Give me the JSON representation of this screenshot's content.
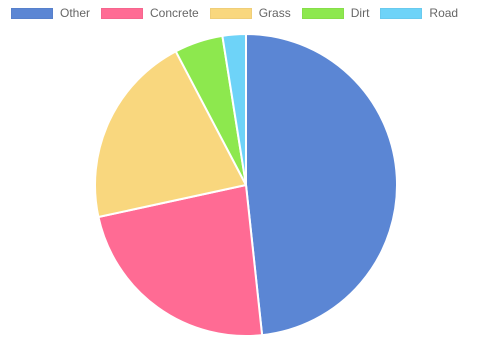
{
  "chart_data": {
    "type": "pie",
    "categories": [
      "Other",
      "Concrete",
      "Grass",
      "Dirt",
      "Road"
    ],
    "values": [
      48.3,
      23.3,
      20.7,
      5.2,
      2.5
    ],
    "colors": [
      "#5b86d4",
      "#ff6b94",
      "#f9d77e",
      "#8de84e",
      "#6ed3f8"
    ],
    "legend_position": "top",
    "start_angle": "top",
    "direction": "clockwise"
  }
}
